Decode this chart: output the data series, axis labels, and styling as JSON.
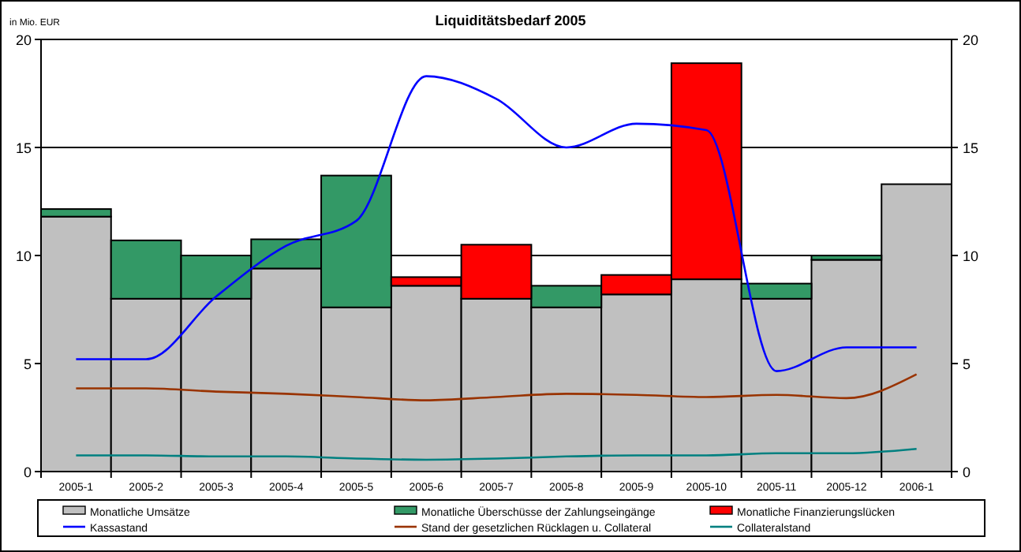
{
  "chart_data": {
    "type": "bar",
    "title": "Liquiditätsbedarf 2005",
    "ylabel": "in Mio. EUR",
    "stacked": true,
    "categories": [
      "2005-1",
      "2005-2",
      "2005-3",
      "2005-4",
      "2005-5",
      "2005-6",
      "2005-7",
      "2005-8",
      "2005-9",
      "2005-10",
      "2005-11",
      "2005-12",
      "2006-1"
    ],
    "series": [
      {
        "name": "Monatliche Umsätze",
        "color": "#c0c0c0",
        "values": [
          11.8,
          8.0,
          8.0,
          9.4,
          7.6,
          8.6,
          8.0,
          7.6,
          8.2,
          8.9,
          8.0,
          9.8,
          13.3
        ]
      },
      {
        "name": "Monatliche Überschüsse der Zahlungseingänge",
        "color": "#339966",
        "values": [
          0.35,
          2.7,
          2.0,
          1.35,
          6.1,
          null,
          null,
          1.0,
          null,
          null,
          0.7,
          0.2,
          null
        ]
      },
      {
        "name": "Monatliche Finanzierungslücken",
        "color": "#ff0000",
        "values": [
          null,
          null,
          null,
          null,
          null,
          0.4,
          2.5,
          null,
          0.9,
          10.0,
          null,
          null,
          null
        ]
      },
      {
        "name": "Kassastand",
        "type": "line",
        "color": "#0000ff",
        "values": [
          5.2,
          5.2,
          8.1,
          10.45,
          11.6,
          18.3,
          17.25,
          15.0,
          16.1,
          15.8,
          4.65,
          5.75,
          5.75
        ]
      },
      {
        "name": "Stand der gesetzlichen Rücklagen u. Collateral",
        "type": "line",
        "color": "#993300",
        "values": [
          3.85,
          3.85,
          3.7,
          3.6,
          3.45,
          3.3,
          3.45,
          3.6,
          3.55,
          3.45,
          3.55,
          3.4,
          4.5
        ]
      },
      {
        "name": "Collateralstand",
        "type": "line",
        "color": "#008080",
        "values": [
          0.75,
          0.75,
          0.7,
          0.7,
          0.6,
          0.55,
          0.6,
          0.7,
          0.75,
          0.75,
          0.85,
          0.85,
          1.05
        ]
      }
    ],
    "ylim": [
      0,
      20
    ],
    "yticks": [
      0,
      5,
      10,
      15,
      20
    ],
    "y2lim": [
      0,
      20
    ],
    "y2ticks": [
      0,
      5,
      10,
      15,
      20
    ],
    "grid": "y",
    "legend": "bottom"
  }
}
